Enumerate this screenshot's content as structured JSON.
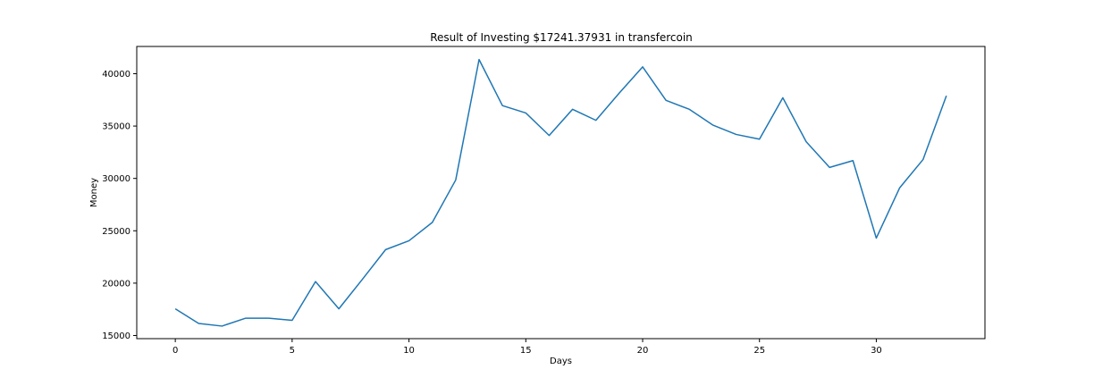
{
  "chart_data": {
    "type": "line",
    "title": "Result of Investing $17241.37931 in transfercoin",
    "xlabel": "Days",
    "ylabel": "Money",
    "xlim": [
      -1.65,
      34.65
    ],
    "ylim": [
      14700,
      42600
    ],
    "xticks": [
      0,
      5,
      10,
      15,
      20,
      25,
      30
    ],
    "yticks": [
      15000,
      20000,
      25000,
      30000,
      35000,
      40000
    ],
    "grid": false,
    "color": "#1f77b4",
    "series": [
      {
        "x": [
          0,
          1,
          2,
          3,
          4,
          5,
          6,
          7,
          8,
          9,
          10,
          11,
          12,
          13,
          14,
          15,
          16,
          17,
          18,
          19,
          20,
          21,
          22,
          23,
          24,
          25,
          26,
          27,
          28,
          29,
          30,
          31,
          32,
          33
        ],
        "values": [
          17550,
          16150,
          15900,
          16650,
          16650,
          16450,
          20150,
          17550,
          20350,
          23200,
          24050,
          25800,
          29850,
          41350,
          36950,
          36250,
          34100,
          36600,
          35550,
          38150,
          40650,
          37450,
          36600,
          35100,
          34200,
          33750,
          37700,
          33500,
          31050,
          31700,
          24300,
          29100,
          31800,
          37900
        ]
      }
    ]
  }
}
